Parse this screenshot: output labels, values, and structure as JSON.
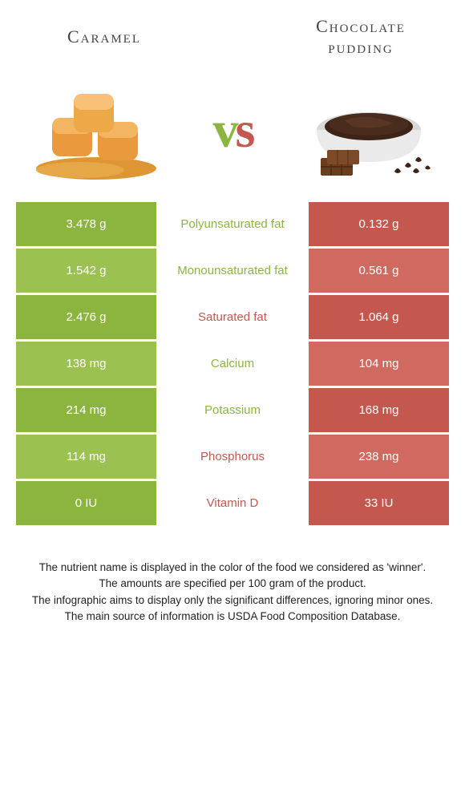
{
  "left_title": "Caramel",
  "right_title": "Chocolate pudding",
  "colors": {
    "green": "#8bb53f",
    "green_alt": "#9bc250",
    "brown": "#c4574e",
    "brown_alt": "#d06a60",
    "caramel_fill": "#e89a3c",
    "caramel_shadow": "#c97618",
    "pudding_dark": "#4a2c1e",
    "pudding_bowl": "#e8e8e8",
    "choc_bar": "#6b3d1f"
  },
  "rows": [
    {
      "left": "3.478 g",
      "label": "Polyunsaturated fat",
      "right": "0.132 g",
      "winner": "left"
    },
    {
      "left": "1.542 g",
      "label": "Monounsaturated fat",
      "right": "0.561 g",
      "winner": "left"
    },
    {
      "left": "2.476 g",
      "label": "Saturated fat",
      "right": "1.064 g",
      "winner": "right"
    },
    {
      "left": "138 mg",
      "label": "Calcium",
      "right": "104 mg",
      "winner": "left"
    },
    {
      "left": "214 mg",
      "label": "Potassium",
      "right": "168 mg",
      "winner": "left"
    },
    {
      "left": "114 mg",
      "label": "Phosphorus",
      "right": "238 mg",
      "winner": "right"
    },
    {
      "left": "0 IU",
      "label": "Vitamin D",
      "right": "33 IU",
      "winner": "right"
    }
  ],
  "footer_lines": [
    "The nutrient name is displayed in the color of the food we considered as 'winner'.",
    "The amounts are specified per 100 gram of the product.",
    "The infographic aims to display only the significant differences, ignoring minor ones.",
    "The main source of information is USDA Food Composition Database."
  ]
}
